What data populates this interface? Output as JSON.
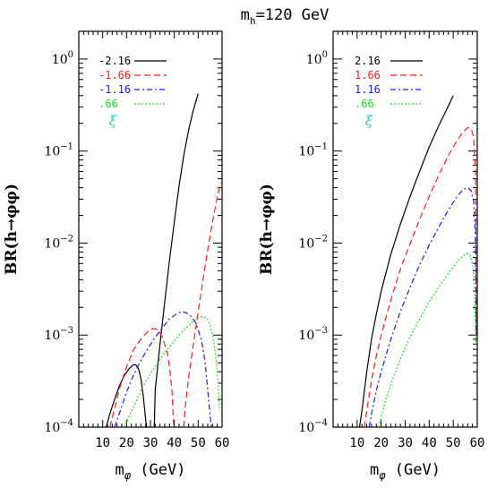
{
  "title": {
    "main": "m",
    "sub": "h",
    "rest": "=120 GeV"
  },
  "chart_data": [
    {
      "type": "line",
      "panel": "left",
      "yscale": "log",
      "xlim": [
        0,
        60
      ],
      "ylim": [
        0.0001,
        2
      ],
      "xticks": [
        "10",
        "20",
        "30",
        "40",
        "50",
        "60"
      ],
      "yticks": [
        {
          "base": "10",
          "exp": "0"
        },
        {
          "base": "10",
          "exp": "−1"
        },
        {
          "base": "10",
          "exp": "−2"
        },
        {
          "base": "10",
          "exp": "−3"
        },
        {
          "base": "10",
          "exp": "−4"
        }
      ],
      "xlabel": {
        "main": "m",
        "sub": "φ",
        "rest": " (GeV)"
      },
      "ylabel": "BR(h→φφ)",
      "legend_title": "ξ",
      "legend_title_color": "#00d8d8",
      "legend_placement": "top-left",
      "series": [
        {
          "name": "-2.16",
          "color": "#000000",
          "dash": "solid",
          "segments": [
            {
              "x": [
                11,
                13,
                15,
                17,
                19,
                21,
                23,
                24,
                25,
                26,
                27,
                28,
                29
              ],
              "y": [
                9e-05,
                0.00014,
                0.0002,
                0.00028,
                0.00036,
                0.00043,
                0.00048,
                0.00047,
                0.00043,
                0.00034,
                0.00022,
                0.00012,
                8e-05
              ]
            },
            {
              "x": [
                31.6,
                32,
                34,
                36,
                38,
                40,
                42,
                44,
                46,
                48,
                50
              ],
              "y": [
                0.0001,
                0.00025,
                0.0008,
                0.0023,
                0.0065,
                0.017,
                0.042,
                0.09,
                0.17,
                0.28,
                0.42
              ]
            }
          ]
        },
        {
          "name": "-1.66",
          "color": "#ff1a1a",
          "dash": "7,4",
          "segments": [
            {
              "x": [
                13,
                15,
                17,
                20,
                23,
                26,
                29,
                31,
                33,
                35,
                37,
                38,
                39,
                39.8
              ],
              "y": [
                0.0001,
                0.00016,
                0.00026,
                0.00045,
                0.0007,
                0.0009,
                0.0011,
                0.00118,
                0.00115,
                0.00095,
                0.00065,
                0.00045,
                0.00025,
                0.0001
              ]
            },
            {
              "x": [
                44,
                44.5,
                46,
                48,
                50,
                52,
                54,
                56,
                58,
                59.5
              ],
              "y": [
                0.0001,
                0.00016,
                0.00035,
                0.0008,
                0.0018,
                0.004,
                0.0085,
                0.017,
                0.032,
                0.045
              ]
            }
          ]
        },
        {
          "name": "-1.16",
          "color": "#1a1aff",
          "dash": "6,3,2,3",
          "segments": [
            {
              "x": [
                15,
                17,
                20,
                23,
                26,
                29,
                32,
                35,
                38,
                41,
                43,
                45,
                47,
                49,
                51,
                52,
                53,
                54,
                55.5
              ],
              "y": [
                0.0001,
                0.00014,
                0.00024,
                0.00037,
                0.00053,
                0.00072,
                0.00095,
                0.0012,
                0.0015,
                0.0017,
                0.0018,
                0.00175,
                0.0016,
                0.00135,
                0.00095,
                0.00072,
                0.00048,
                0.00025,
                0.0001
              ]
            }
          ]
        },
        {
          "name": ".66",
          "color": "#22e022",
          "dash": "2,2",
          "segments": [
            {
              "x": [
                19,
                21,
                24,
                27,
                30,
                33,
                36,
                39,
                42,
                45,
                48,
                50,
                52,
                54,
                55,
                56,
                57,
                58,
                59
              ],
              "y": [
                0.0001,
                0.00013,
                0.00019,
                0.00028,
                0.00038,
                0.0005,
                0.00065,
                0.0008,
                0.001,
                0.0012,
                0.00142,
                0.00155,
                0.0016,
                0.00148,
                0.00128,
                0.001,
                0.0007,
                0.0004,
                0.00015
              ]
            }
          ]
        }
      ]
    },
    {
      "type": "line",
      "panel": "right",
      "yscale": "log",
      "xlim": [
        0,
        60
      ],
      "ylim": [
        0.0001,
        2
      ],
      "xticks": [
        "10",
        "20",
        "30",
        "40",
        "50",
        "60"
      ],
      "yticks": [
        {
          "base": "10",
          "exp": "0"
        },
        {
          "base": "10",
          "exp": "−1"
        },
        {
          "base": "10",
          "exp": "−2"
        },
        {
          "base": "10",
          "exp": "−3"
        },
        {
          "base": "10",
          "exp": "−4"
        }
      ],
      "xlabel": {
        "main": "m",
        "sub": "φ",
        "rest": " (GeV)"
      },
      "ylabel": "BR(h→φφ)",
      "legend_title": "ξ",
      "legend_title_color": "#00d8d8",
      "legend_placement": "top-left",
      "series": [
        {
          "name": "2.16",
          "color": "#000000",
          "dash": "solid",
          "segments": [
            {
              "x": [
                11,
                12,
                14,
                16,
                18,
                20,
                24,
                28,
                32,
                36,
                40,
                44,
                48,
                50
              ],
              "y": [
                0.0001,
                0.00015,
                0.0004,
                0.0009,
                0.0017,
                0.003,
                0.0075,
                0.016,
                0.032,
                0.06,
                0.11,
                0.19,
                0.31,
                0.4
              ]
            }
          ]
        },
        {
          "name": "1.66",
          "color": "#ff1a1a",
          "dash": "7,4",
          "segments": [
            {
              "x": [
                13,
                14,
                16,
                18,
                20,
                24,
                28,
                32,
                36,
                40,
                44,
                48,
                52,
                54,
                56,
                57.5,
                58.5,
                59.3,
                59.6
              ],
              "y": [
                0.0001,
                0.00015,
                0.00032,
                0.0006,
                0.001,
                0.0024,
                0.0052,
                0.0098,
                0.018,
                0.032,
                0.055,
                0.09,
                0.135,
                0.16,
                0.18,
                0.175,
                0.14,
                0.06,
                0.001
              ]
            }
          ]
        },
        {
          "name": "1.16",
          "color": "#1a1aff",
          "dash": "6,3,2,3",
          "segments": [
            {
              "x": [
                15,
                16,
                18,
                20,
                24,
                28,
                32,
                36,
                40,
                44,
                48,
                52,
                54,
                56,
                57.5,
                58.5,
                59.2,
                59.6
              ],
              "y": [
                0.0001,
                0.00014,
                0.00025,
                0.0004,
                0.0009,
                0.0018,
                0.0033,
                0.0058,
                0.0095,
                0.015,
                0.023,
                0.033,
                0.038,
                0.04,
                0.037,
                0.028,
                0.012,
                0.001
              ]
            }
          ]
        },
        {
          "name": ".66",
          "color": "#22e022",
          "dash": "2,2",
          "segments": [
            {
              "x": [
                19,
                20,
                22,
                24,
                28,
                32,
                36,
                40,
                44,
                48,
                52,
                54,
                56,
                57,
                58,
                58.8,
                59.4
              ],
              "y": [
                0.0001,
                0.00013,
                0.0002,
                0.00029,
                0.00055,
                0.00095,
                0.0015,
                0.0023,
                0.0033,
                0.0047,
                0.0064,
                0.0072,
                0.0077,
                0.0074,
                0.006,
                0.0035,
                0.0008
              ]
            }
          ]
        }
      ]
    }
  ]
}
